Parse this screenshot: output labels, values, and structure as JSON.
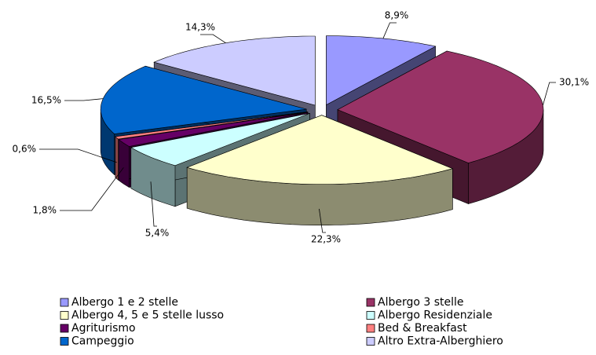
{
  "chart_data": {
    "type": "pie",
    "categories": [
      "Albergo 1 e 2 stelle",
      "Albergo 3 stelle",
      "Albergo 4, 5 e 5 stelle lusso",
      "Albergo Residenziale",
      "Agriturismo",
      "Bed & Breakfast",
      "Campeggio",
      "Altro Extra-Alberghiero"
    ],
    "values": [
      8.9,
      30.1,
      22.3,
      5.4,
      1.8,
      0.6,
      16.5,
      14.3
    ],
    "value_labels": [
      "8,9%",
      "30,1%",
      "22,3%",
      "5,4%",
      "1,8%",
      "0,6%",
      "16,5%",
      "14,3%"
    ],
    "colors": [
      "#9999ff",
      "#993366",
      "#ffffcc",
      "#ccffff",
      "#660066",
      "#ff8080",
      "#0066cc",
      "#ccccff"
    ],
    "legend": "bottom"
  }
}
